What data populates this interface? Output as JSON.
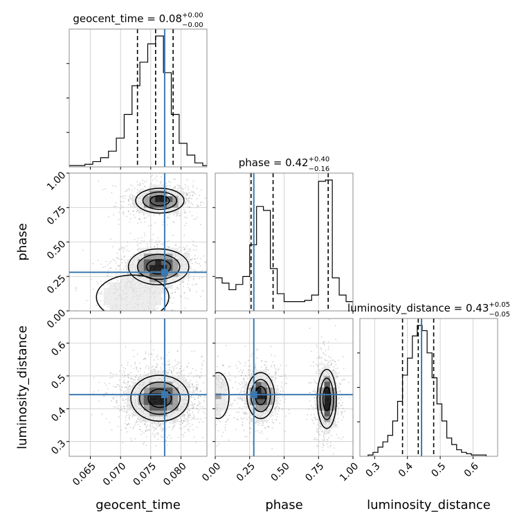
{
  "chart_data": {
    "type": "corner",
    "parameters": [
      "geocent_time",
      "phase",
      "luminosity_distance"
    ],
    "colors": {
      "truth": "#3b78b0",
      "hist": "#000000",
      "grid": "#c8c8c8",
      "scatter": "#9a9a9a"
    },
    "truths": {
      "geocent_time": 0.0773,
      "phase": 0.28,
      "luminosity_distance": 0.443
    },
    "ranges": {
      "geocent_time": [
        0.0615,
        0.0843
      ],
      "phase": [
        0.0,
        1.0
      ],
      "luminosity_distance": [
        0.255,
        0.675
      ]
    },
    "ticks": {
      "geocent_time": [
        {
          "v": 0.065,
          "label": "0.065"
        },
        {
          "v": 0.07,
          "label": "0.070"
        },
        {
          "v": 0.075,
          "label": "0.075"
        },
        {
          "v": 0.08,
          "label": "0.080"
        }
      ],
      "phase": [
        {
          "v": 0.0,
          "label": "0.00"
        },
        {
          "v": 0.25,
          "label": "0.25"
        },
        {
          "v": 0.5,
          "label": "0.50"
        },
        {
          "v": 0.75,
          "label": "0.75"
        },
        {
          "v": 1.0,
          "label": "1.00"
        }
      ],
      "luminosity_distance": [
        {
          "v": 0.3,
          "label": "0.3"
        },
        {
          "v": 0.4,
          "label": "0.4"
        },
        {
          "v": 0.5,
          "label": "0.5"
        },
        {
          "v": 0.6,
          "label": "0.6"
        }
      ]
    },
    "titles": [
      {
        "param": "geocent_time",
        "text": "geocent_time = 0.08",
        "sup": "+0.00",
        "sub": "−0.00"
      },
      {
        "param": "phase",
        "text": "phase = 0.42",
        "sup": "+0.40",
        "sub": "−0.16"
      },
      {
        "param": "luminosity_distance",
        "text": "luminosity_distance = 0.43",
        "sup": "+0.05",
        "sub": "−0.05"
      }
    ],
    "quantiles": {
      "geocent_time": [
        0.0728,
        0.0758,
        0.0787
      ],
      "phase": [
        0.26,
        0.42,
        0.82
      ],
      "luminosity_distance": [
        0.385,
        0.433,
        0.48
      ]
    },
    "histograms": {
      "geocent_time": {
        "edges": [
          0.0615,
          0.0628,
          0.0641,
          0.0654,
          0.0667,
          0.068,
          0.0693,
          0.0706,
          0.0719,
          0.0732,
          0.0745,
          0.0758,
          0.0771,
          0.0784,
          0.0797,
          0.081,
          0.0823,
          0.0836,
          0.0843
        ],
        "counts": [
          1,
          1,
          2,
          4,
          7,
          12,
          22,
          40,
          62,
          80,
          94,
          100,
          72,
          40,
          18,
          9,
          3,
          1
        ]
      },
      "phase": {
        "edges": [
          0.0,
          0.05,
          0.1,
          0.15,
          0.2,
          0.25,
          0.3,
          0.35,
          0.4,
          0.45,
          0.5,
          0.55,
          0.6,
          0.65,
          0.7,
          0.75,
          0.8,
          0.85,
          0.9,
          0.95,
          1.0
        ],
        "counts": [
          25,
          21,
          16,
          20,
          26,
          50,
          79,
          76,
          32,
          13,
          7,
          7,
          7,
          8,
          12,
          98,
          99,
          25,
          12,
          7
        ]
      },
      "luminosity_distance": {
        "edges": [
          0.28,
          0.295,
          0.31,
          0.325,
          0.34,
          0.355,
          0.37,
          0.385,
          0.4,
          0.415,
          0.43,
          0.445,
          0.46,
          0.475,
          0.49,
          0.505,
          0.52,
          0.535,
          0.55,
          0.565,
          0.58,
          0.595,
          0.61,
          0.625,
          0.64
        ],
        "counts": [
          1,
          3,
          7,
          11,
          16,
          27,
          42,
          62,
          75,
          92,
          100,
          96,
          79,
          60,
          40,
          27,
          14,
          9,
          5,
          3,
          2,
          1,
          1,
          1
        ]
      }
    },
    "contours": [
      {
        "x": "geocent_time",
        "y": "phase",
        "cores": [
          {
            "cx": 0.0765,
            "cy": 0.8,
            "sx": 0.002,
            "sy": 0.045,
            "w": 1.0
          },
          {
            "cx": 0.0763,
            "cy": 0.32,
            "sx": 0.0025,
            "sy": 0.065,
            "w": 1.0
          },
          {
            "cx": 0.072,
            "cy": 0.1,
            "sx": 0.003,
            "sy": 0.08,
            "w": 0.3
          }
        ]
      },
      {
        "x": "geocent_time",
        "y": "luminosity_distance",
        "cores": [
          {
            "cx": 0.0765,
            "cy": 0.432,
            "sx": 0.0024,
            "sy": 0.035,
            "w": 1.0
          }
        ]
      },
      {
        "x": "phase",
        "y": "luminosity_distance",
        "cores": [
          {
            "cx": 0.33,
            "cy": 0.44,
            "sx": 0.05,
            "sy": 0.035,
            "w": 1.0
          },
          {
            "cx": 0.81,
            "cy": 0.43,
            "sx": 0.035,
            "sy": 0.045,
            "w": 1.0
          },
          {
            "cx": 0.02,
            "cy": 0.44,
            "sx": 0.04,
            "sy": 0.035,
            "w": 0.35
          }
        ]
      }
    ]
  }
}
